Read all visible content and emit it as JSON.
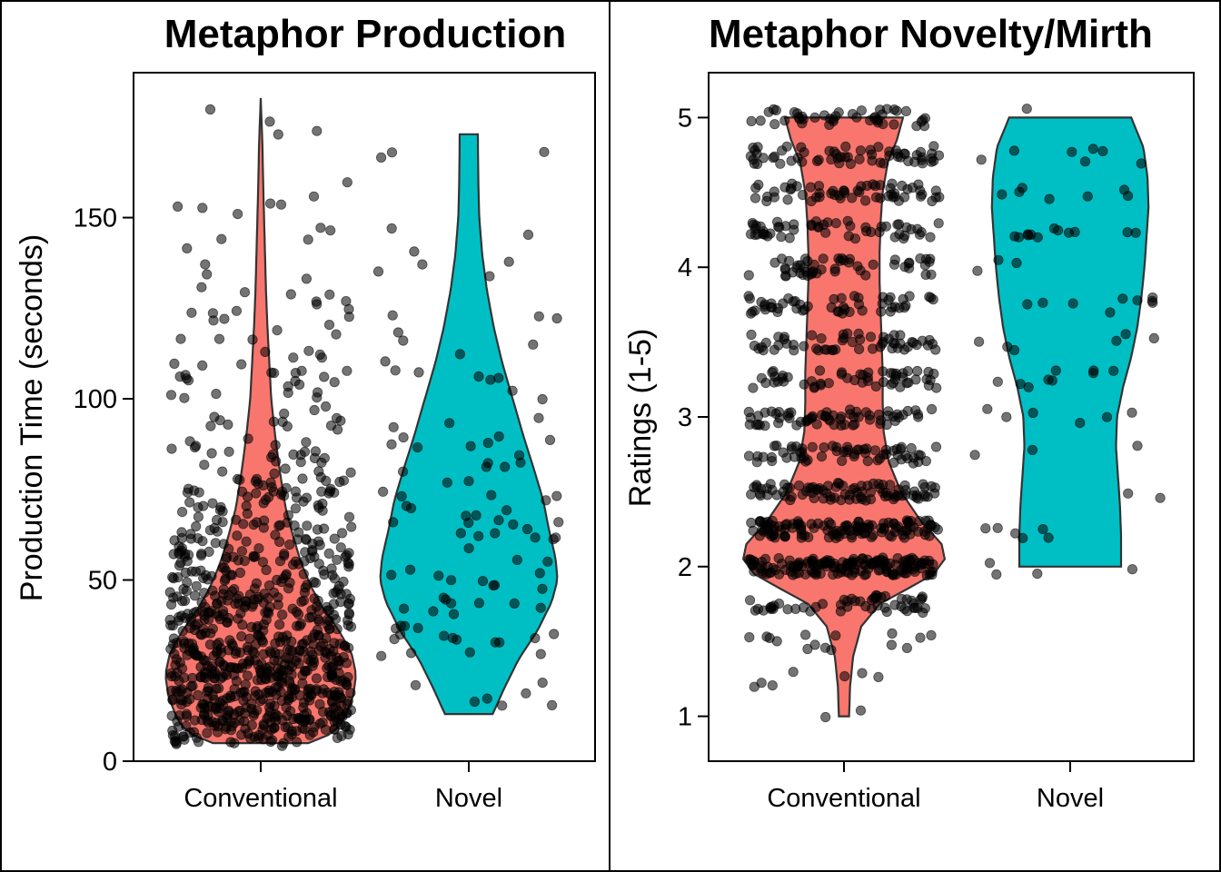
{
  "chart_data": [
    {
      "type": "violin",
      "title": "Metaphor Production",
      "xlabel": "",
      "ylabel": "Production Time (seconds)",
      "categories": [
        "Conventional",
        "Novel"
      ],
      "ylim": [
        0,
        190
      ],
      "yticks": [
        0,
        50,
        100,
        150
      ],
      "colors": [
        "#F8766D",
        "#00BFC4"
      ],
      "violins": [
        {
          "category": "Conventional",
          "color": "#F8766D",
          "min": 5,
          "max": 183,
          "points": 900,
          "density": [
            [
              5,
              0.5
            ],
            [
              8,
              0.78
            ],
            [
              12,
              0.88
            ],
            [
              18,
              0.97
            ],
            [
              24,
              1.0
            ],
            [
              30,
              0.95
            ],
            [
              36,
              0.82
            ],
            [
              42,
              0.66
            ],
            [
              48,
              0.53
            ],
            [
              55,
              0.42
            ],
            [
              62,
              0.34
            ],
            [
              70,
              0.26
            ],
            [
              80,
              0.2
            ],
            [
              90,
              0.15
            ],
            [
              100,
              0.11
            ],
            [
              110,
              0.09
            ],
            [
              120,
              0.07
            ],
            [
              130,
              0.055
            ],
            [
              140,
              0.045
            ],
            [
              150,
              0.035
            ],
            [
              160,
              0.025
            ],
            [
              170,
              0.018
            ],
            [
              183,
              0.0
            ]
          ]
        },
        {
          "category": "Novel",
          "color": "#00BFC4",
          "min": 13,
          "max": 173,
          "points": 110,
          "density": [
            [
              13,
              0.25
            ],
            [
              20,
              0.37
            ],
            [
              28,
              0.52
            ],
            [
              36,
              0.72
            ],
            [
              44,
              0.87
            ],
            [
              50,
              0.93
            ],
            [
              56,
              0.91
            ],
            [
              64,
              0.84
            ],
            [
              72,
              0.78
            ],
            [
              80,
              0.69
            ],
            [
              90,
              0.57
            ],
            [
              100,
              0.46
            ],
            [
              110,
              0.35
            ],
            [
              120,
              0.26
            ],
            [
              130,
              0.19
            ],
            [
              140,
              0.14
            ],
            [
              150,
              0.11
            ],
            [
              160,
              0.1
            ],
            [
              173,
              0.095
            ]
          ]
        }
      ]
    },
    {
      "type": "violin",
      "title": "Metaphor Novelty/Mirth",
      "xlabel": "",
      "ylabel": "Ratings (1-5)",
      "categories": [
        "Conventional",
        "Novel"
      ],
      "ylim": [
        0.7,
        5.3
      ],
      "yticks": [
        1,
        2,
        3,
        4,
        5
      ],
      "colors": [
        "#F8766D",
        "#00BFC4"
      ],
      "violins": [
        {
          "category": "Conventional",
          "color": "#F8766D",
          "min": 1,
          "max": 5,
          "points": 1000,
          "density": [
            [
              1.0,
              0.05
            ],
            [
              1.2,
              0.06
            ],
            [
              1.4,
              0.09
            ],
            [
              1.6,
              0.17
            ],
            [
              1.75,
              0.35
            ],
            [
              1.85,
              0.62
            ],
            [
              1.95,
              0.88
            ],
            [
              2.05,
              0.99
            ],
            [
              2.15,
              0.96
            ],
            [
              2.3,
              0.76
            ],
            [
              2.5,
              0.56
            ],
            [
              2.7,
              0.44
            ],
            [
              2.9,
              0.39
            ],
            [
              3.1,
              0.38
            ],
            [
              3.3,
              0.38
            ],
            [
              3.5,
              0.37
            ],
            [
              3.7,
              0.36
            ],
            [
              3.9,
              0.35
            ],
            [
              4.1,
              0.35
            ],
            [
              4.3,
              0.36
            ],
            [
              4.5,
              0.38
            ],
            [
              4.7,
              0.43
            ],
            [
              4.85,
              0.52
            ],
            [
              5.0,
              0.58
            ]
          ]
        },
        {
          "category": "Novel",
          "color": "#00BFC4",
          "min": 2,
          "max": 5,
          "points": 75,
          "density": [
            [
              2.0,
              0.5
            ],
            [
              2.2,
              0.5
            ],
            [
              2.4,
              0.49
            ],
            [
              2.6,
              0.47
            ],
            [
              2.8,
              0.45
            ],
            [
              3.0,
              0.46
            ],
            [
              3.2,
              0.52
            ],
            [
              3.4,
              0.6
            ],
            [
              3.6,
              0.66
            ],
            [
              3.8,
              0.7
            ],
            [
              4.0,
              0.73
            ],
            [
              4.2,
              0.75
            ],
            [
              4.4,
              0.77
            ],
            [
              4.6,
              0.76
            ],
            [
              4.8,
              0.72
            ],
            [
              5.0,
              0.6
            ]
          ]
        }
      ]
    }
  ]
}
